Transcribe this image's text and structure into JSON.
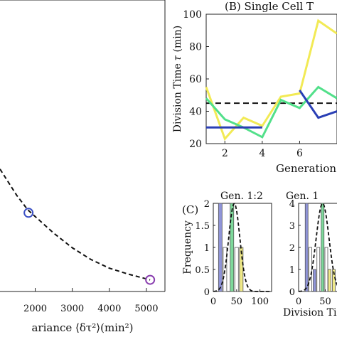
{
  "chart_data": [
    {
      "type": "scatter",
      "panel": "left",
      "xlabel": "ariance ⟨δτ²⟩(min²)",
      "xticks": [
        "2000",
        "3000",
        "4000",
        "5000"
      ],
      "xlim": [
        1050,
        5500
      ],
      "ylim": [
        0,
        1
      ],
      "points": [
        {
          "x": 1820,
          "y": 0.27,
          "color": "#3a4fc4"
        },
        {
          "x": 5100,
          "y": 0.04,
          "color": "#8a3fb0"
        }
      ],
      "fit_curve": [
        [
          1050,
          0.42
        ],
        [
          1500,
          0.33
        ],
        [
          1800,
          0.28
        ],
        [
          2500,
          0.2
        ],
        [
          3000,
          0.15
        ],
        [
          3500,
          0.11
        ],
        [
          4000,
          0.08
        ],
        [
          4500,
          0.06
        ],
        [
          5100,
          0.04
        ]
      ]
    },
    {
      "type": "line",
      "panel": "B",
      "title": "(B) Single Cell T",
      "ylabel": "Division Time 𝜏 (min)",
      "xlabel": "Generation",
      "xticks": [
        2,
        4,
        6
      ],
      "yticks": [
        20,
        40,
        60,
        80,
        100
      ],
      "xlim": [
        1,
        8
      ],
      "ylim": [
        20,
        100
      ],
      "mean_line": 45,
      "series": [
        {
          "color": "#f2ea55",
          "x": [
            1,
            2,
            3,
            4,
            5,
            6,
            7,
            8
          ],
          "y": [
            55,
            23,
            36,
            31,
            49,
            51,
            96,
            88
          ]
        },
        {
          "color": "#52e08a",
          "x": [
            1,
            2,
            3,
            4,
            5,
            6,
            7,
            8
          ],
          "y": [
            48,
            35,
            30,
            24,
            47,
            42,
            55,
            48
          ]
        },
        {
          "color": "#2a3fb5",
          "x": [
            1,
            2,
            3,
            4,
            5,
            6,
            7,
            8
          ],
          "y": [
            30,
            30,
            30,
            30,
            null,
            53,
            36,
            40
          ]
        }
      ]
    },
    {
      "type": "bar",
      "panel": "C",
      "label": "(C)",
      "title": "Gen. 1:2",
      "ylabel": "Frequency",
      "xticks": [
        0,
        50,
        100
      ],
      "yticks": [
        "0",
        "0.5",
        "1",
        "1.5",
        "2"
      ],
      "xlim": [
        0,
        125
      ],
      "ylim": [
        0,
        2
      ],
      "bars": [
        {
          "x": 15,
          "value": 2,
          "color": "#8f94d8"
        },
        {
          "x": 25,
          "value": 1,
          "color": "#ffffff"
        },
        {
          "x": 40,
          "value": 2,
          "color": "#7dd99a"
        },
        {
          "x": 50,
          "value": 1,
          "color": "#ffffff"
        },
        {
          "x": 60,
          "value": 1,
          "color": "#f0ea88"
        }
      ],
      "curve": {
        "mean": 45,
        "sd": 12,
        "peak": 2
      }
    },
    {
      "type": "bar",
      "panel": "C2",
      "title": "Gen. 1",
      "xlabel": "Division Ti",
      "xticks": [
        0,
        50
      ],
      "yticks": [
        "0",
        "1",
        "2",
        "3",
        "4"
      ],
      "xlim": [
        0,
        80
      ],
      "ylim": [
        0,
        4
      ],
      "bars": [
        {
          "x": 15,
          "value": 4,
          "color": "#8f94d8"
        },
        {
          "x": 22,
          "value": 2,
          "color": "#ffffff"
        },
        {
          "x": 30,
          "value": 1,
          "color": "#8f94d8"
        },
        {
          "x": 37,
          "value": 2,
          "color": "#ffffff"
        },
        {
          "x": 45,
          "value": 4,
          "color": "#7dd99a"
        },
        {
          "x": 52,
          "value": 2,
          "color": "#ffffff"
        },
        {
          "x": 58,
          "value": 1,
          "color": "#f0ea88"
        },
        {
          "x": 66,
          "value": 1,
          "color": "#f0ea88"
        }
      ],
      "curve": {
        "mean": 45,
        "sd": 12,
        "peak": 4
      }
    }
  ]
}
